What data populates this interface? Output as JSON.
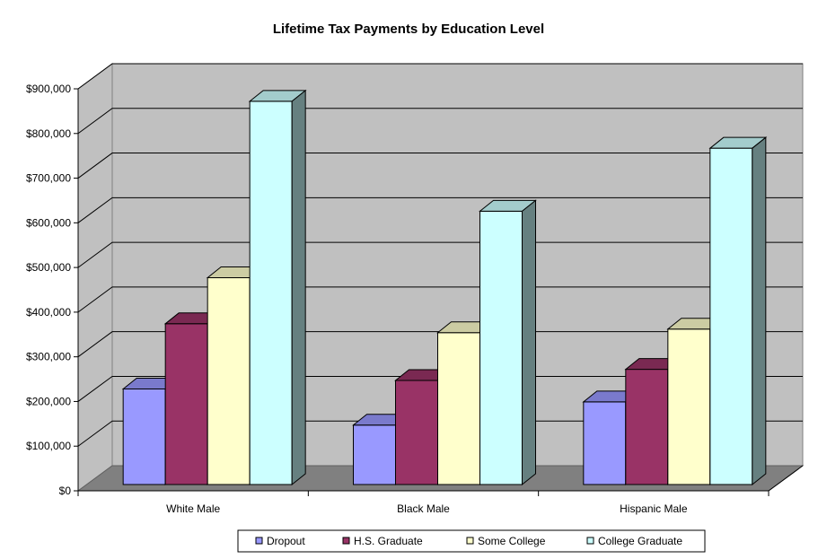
{
  "chart_data": {
    "type": "bar",
    "title": "Lifetime Tax Payments by Education Level",
    "xlabel": "",
    "ylabel": "",
    "categories": [
      "White Male",
      "Black Male",
      "Hispanic Male"
    ],
    "series": [
      {
        "name": "Dropout",
        "values": [
          214000,
          133000,
          185000
        ],
        "color": "#9999ff"
      },
      {
        "name": "H.S. Graduate",
        "values": [
          360000,
          233000,
          258000
        ],
        "color": "#993366"
      },
      {
        "name": "Some College",
        "values": [
          463000,
          340000,
          348000
        ],
        "color": "#ffffcc"
      },
      {
        "name": "College Graduate",
        "values": [
          858000,
          612000,
          753000
        ],
        "color": "#ccffff"
      }
    ],
    "ylim": [
      0,
      900000
    ],
    "ytick_labels": [
      "$0",
      "$100,000",
      "$200,000",
      "$300,000",
      "$400,000",
      "$500,000",
      "$600,000",
      "$700,000",
      "$800,000",
      "$900,000"
    ],
    "grid": true,
    "legend_position": "bottom",
    "style": "3d-column",
    "wall_color": "#c0c0c0",
    "floor_color": "#808080"
  }
}
